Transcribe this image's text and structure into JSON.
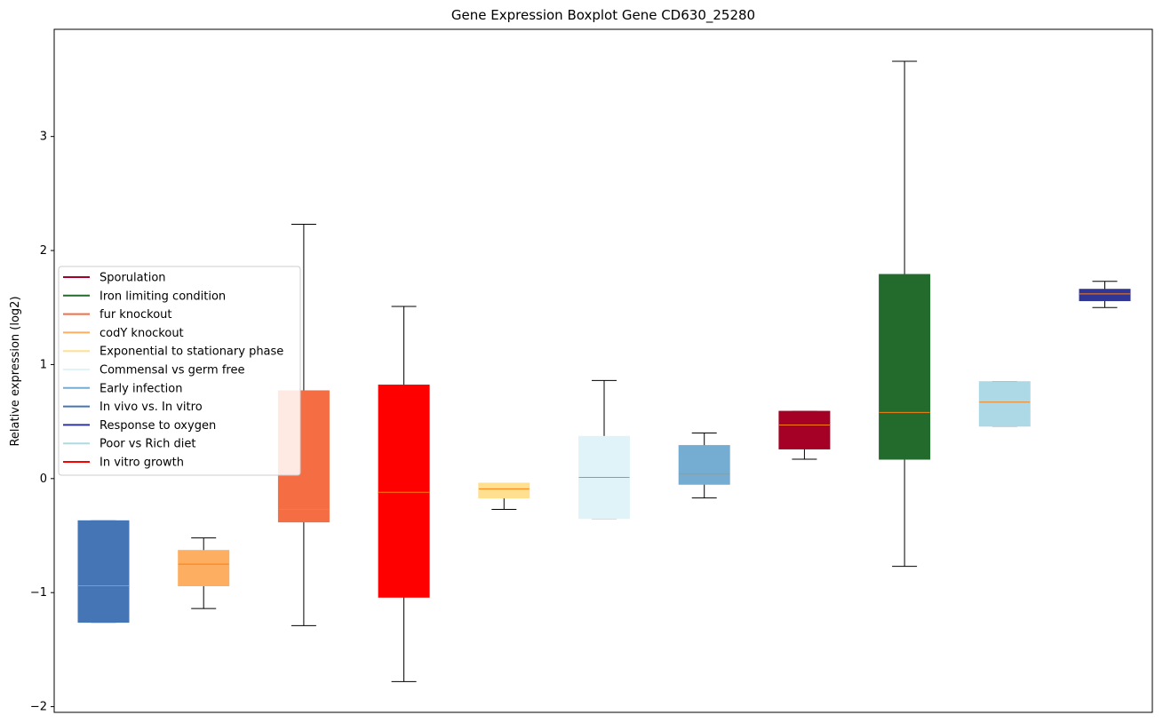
{
  "chart_data": {
    "type": "boxplot",
    "title": "Gene Expression Boxplot Gene CD630_25280",
    "xlabel": "",
    "ylabel": "Relative expression (log2)",
    "ylim": [
      -2.05,
      3.94
    ],
    "yticks": [
      -2,
      -1,
      0,
      1,
      2,
      3
    ],
    "ytick_labels": [
      "−2",
      "−1",
      "0",
      "1",
      "2",
      "3"
    ],
    "median_color": "#ff7f0e",
    "whisker_color": "#000000",
    "legend_position": "center-left",
    "legend": [
      {
        "label": "Sporulation",
        "color": "#a50026"
      },
      {
        "label": "Iron limiting condition",
        "color": "#226b2d"
      },
      {
        "label": "fur knockout",
        "color": "#f46d43"
      },
      {
        "label": "codY knockout",
        "color": "#fdae61"
      },
      {
        "label": "Exponential to stationary phase",
        "color": "#fee090"
      },
      {
        "label": "Commensal vs germ free",
        "color": "#e0f3f8"
      },
      {
        "label": "Early infection",
        "color": "#74add1"
      },
      {
        "label": "In vivo vs. In vitro",
        "color": "#4575b4"
      },
      {
        "label": "Response to oxygen",
        "color": "#313695"
      },
      {
        "label": "Poor vs Rich diet",
        "color": "#add8e6"
      },
      {
        "label": "In vitro growth",
        "color": "#ff0000"
      }
    ],
    "boxes": [
      {
        "group": "In vivo vs. In vitro",
        "color": "#4575b4",
        "whislo": -1.26,
        "q1": -1.26,
        "med": -0.94,
        "q3": -0.37,
        "whishi": -0.37
      },
      {
        "group": "codY knockout",
        "color": "#fdae61",
        "whislo": -1.14,
        "q1": -0.94,
        "med": -0.75,
        "q3": -0.63,
        "whishi": -0.52
      },
      {
        "group": "fur knockout",
        "color": "#f46d43",
        "whislo": -1.29,
        "q1": -0.38,
        "med": -0.27,
        "q3": 0.77,
        "whishi": 2.23
      },
      {
        "group": "In vitro growth",
        "color": "#ff0000",
        "whislo": -1.78,
        "q1": -1.04,
        "med": -0.12,
        "q3": 0.82,
        "whishi": 1.51
      },
      {
        "group": "Exponential to stationary phase",
        "color": "#fee090",
        "whislo": -0.27,
        "q1": -0.17,
        "med": -0.09,
        "q3": -0.04,
        "whishi": -0.04
      },
      {
        "group": "Commensal vs germ free",
        "color": "#e0f3f8",
        "whislo": -0.35,
        "q1": -0.35,
        "med": 0.01,
        "q3": 0.37,
        "whishi": 0.86
      },
      {
        "group": "Early infection",
        "color": "#74add1",
        "whislo": -0.17,
        "q1": -0.05,
        "med": 0.04,
        "q3": 0.29,
        "whishi": 0.4
      },
      {
        "group": "Sporulation",
        "color": "#a50026",
        "whislo": 0.17,
        "q1": 0.26,
        "med": 0.47,
        "q3": 0.59,
        "whishi": 0.59
      },
      {
        "group": "Iron limiting condition",
        "color": "#226b2d",
        "whislo": -0.77,
        "q1": 0.17,
        "med": 0.58,
        "q3": 1.79,
        "whishi": 3.66
      },
      {
        "group": "Poor vs Rich diet",
        "color": "#add8e6",
        "whislo": 0.46,
        "q1": 0.46,
        "med": 0.67,
        "q3": 0.85,
        "whishi": 0.85
      },
      {
        "group": "Response to oxygen",
        "color": "#313695",
        "whislo": 1.5,
        "q1": 1.56,
        "med": 1.62,
        "q3": 1.66,
        "whishi": 1.73
      }
    ]
  }
}
